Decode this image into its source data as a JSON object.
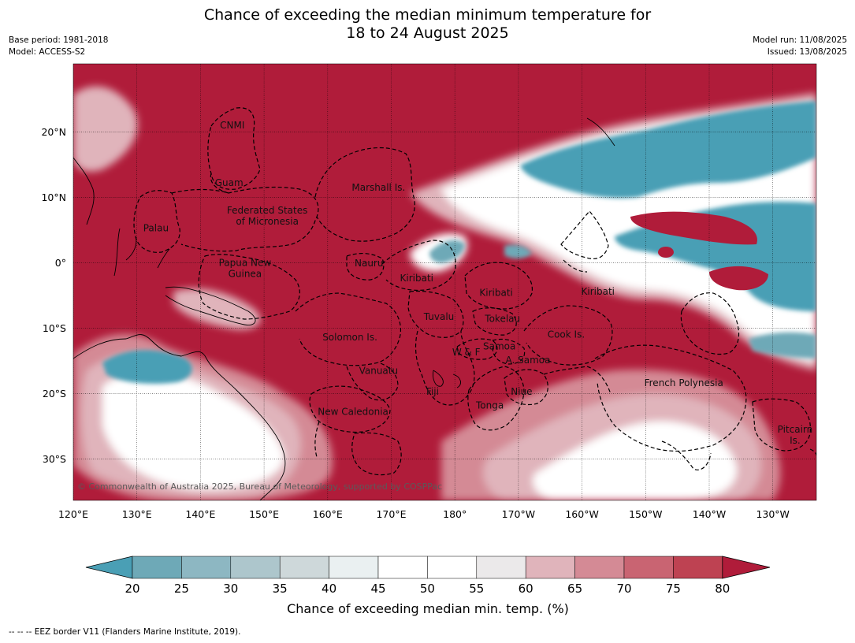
{
  "title_line1": "Chance of exceeding the median minimum temperature for",
  "title_line2": "18 to 24 August 2025",
  "meta_left": [
    "Base period: 1981-2018",
    "Model: ACCESS-S2"
  ],
  "meta_right": [
    "Model run: 11/08/2025",
    "Issued: 13/08/2025"
  ],
  "copyright": "© Commonwealth of Australia 2025, Bureau of Meteorology, supported by COSPPac",
  "lon_ticks": [
    "120°E",
    "130°E",
    "140°E",
    "150°E",
    "160°E",
    "170°E",
    "180°",
    "170°W",
    "160°W",
    "150°W",
    "140°W",
    "130°W"
  ],
  "lat_ticks": [
    "20°N",
    "10°N",
    "0°",
    "10°S",
    "20°S",
    "30°S"
  ],
  "regions": [
    {
      "name": "CNMI",
      "lon": 145,
      "lat": 21
    },
    {
      "name": "Guam",
      "lon": 144.5,
      "lat": 12.2
    },
    {
      "name": "Marshall Is.",
      "lon": 168,
      "lat": 11.5
    },
    {
      "name": "Federated States",
      "lon": 150.5,
      "lat": 8
    },
    {
      "name": "of Micronesia",
      "lon": 150.5,
      "lat": 6.3
    },
    {
      "name": "Palau",
      "lon": 133,
      "lat": 5.3
    },
    {
      "name": "Papua New",
      "lon": 147,
      "lat": 0
    },
    {
      "name": "Guinea",
      "lon": 147,
      "lat": -1.7
    },
    {
      "name": "Nauru",
      "lon": 166.5,
      "lat": -0.1
    },
    {
      "name": "Kiribati",
      "lon": 174,
      "lat": -2.4
    },
    {
      "name": "Kiribati",
      "lon": 186.5,
      "lat": -4.6
    },
    {
      "name": "Kiribati",
      "lon": 202.5,
      "lat": -4.4
    },
    {
      "name": "Tuvalu",
      "lon": 177.5,
      "lat": -8.3
    },
    {
      "name": "Tokelau",
      "lon": 187.5,
      "lat": -8.6
    },
    {
      "name": "Solomon Is.",
      "lon": 163.5,
      "lat": -11.4
    },
    {
      "name": "Cook Is.",
      "lon": 197.5,
      "lat": -11
    },
    {
      "name": "W & F",
      "lon": 181.8,
      "lat": -13.7
    },
    {
      "name": "Samoa",
      "lon": 187,
      "lat": -12.8
    },
    {
      "name": "A. Samoa",
      "lon": 191.5,
      "lat": -14.9
    },
    {
      "name": "Vanuatu",
      "lon": 168,
      "lat": -16.5
    },
    {
      "name": "French Polynesia",
      "lon": 216,
      "lat": -18.4
    },
    {
      "name": "Fiji",
      "lon": 176.5,
      "lat": -19.7
    },
    {
      "name": "Niue",
      "lon": 190.5,
      "lat": -19.7
    },
    {
      "name": "Tonga",
      "lon": 185.5,
      "lat": -21.8
    },
    {
      "name": "New Caledonia",
      "lon": 164,
      "lat": -22.8
    },
    {
      "name": "Pitcairn",
      "lon": 233.5,
      "lat": -25.5
    },
    {
      "name": "Is.",
      "lon": 233.5,
      "lat": -27.2
    }
  ],
  "colorbar": {
    "ticks": [
      "20",
      "25",
      "30",
      "35",
      "40",
      "45",
      "50",
      "55",
      "60",
      "65",
      "70",
      "75",
      "80"
    ],
    "colors": [
      "#4a9fb5",
      "#6ea9b7",
      "#8db7c2",
      "#adc6cc",
      "#ced8da",
      "#eaf0f1",
      "#ffffff",
      "#ffffff",
      "#ebe9ea",
      "#e0b4bb",
      "#d48a95",
      "#c96472",
      "#be4252",
      "#b01c3a"
    ],
    "label": "Chance of exceeding median min. temp. (%)"
  },
  "footnote": "-- -- -- EEZ border V11 (Flanders Marine Institute, 2019).",
  "map_colors": {
    "high": "#b01c3a",
    "low": "#4a9fb5",
    "mid": "#ffffff"
  }
}
